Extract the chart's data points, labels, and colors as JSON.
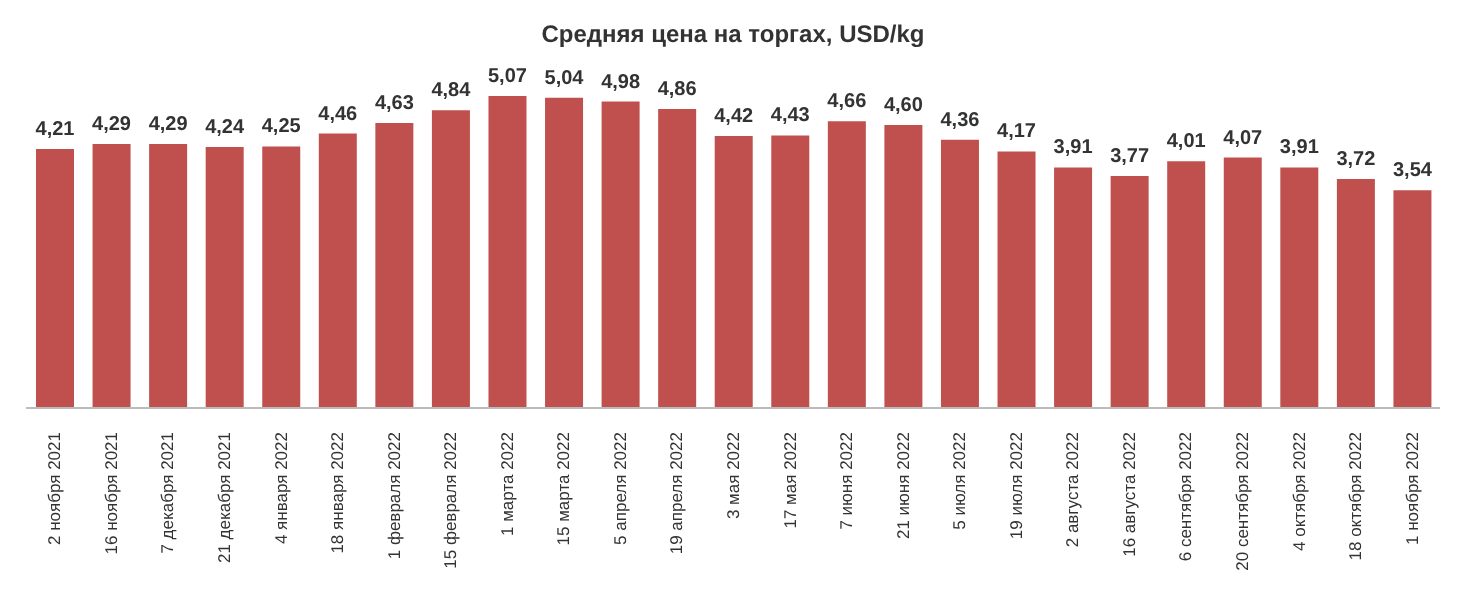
{
  "chart_data": {
    "type": "bar",
    "title": "Средняя цена на торгах, USD/kg",
    "categories": [
      "2 ноября 2021",
      "16 ноября 2021",
      "7 декабря 2021",
      "21 декабря 2021",
      "4 января 2022",
      "18 января 2022",
      "1 февраля 2022",
      "15 февраля 2022",
      "1 марта 2022",
      "15 марта 2022",
      "5 апреля 2022",
      "19 апреля 2022",
      "3 мая 2022",
      "17 мая 2022",
      "7 июня 2022",
      "21 июня 2022",
      "5 июля 2022",
      "19 июля 2022",
      "2 августа 2022",
      "16 августа 2022",
      "6 сентября 2022",
      "20 сентября 2022",
      "4 октября 2022",
      "18 октября 2022",
      "1 ноября 2022"
    ],
    "values": [
      4.21,
      4.29,
      4.29,
      4.24,
      4.25,
      4.46,
      4.63,
      4.84,
      5.07,
      5.04,
      4.98,
      4.86,
      4.42,
      4.43,
      4.66,
      4.6,
      4.36,
      4.17,
      3.91,
      3.77,
      4.01,
      4.07,
      3.91,
      3.72,
      3.54
    ],
    "value_labels": [
      "4,21",
      "4,29",
      "4,29",
      "4,24",
      "4,25",
      "4,46",
      "4,63",
      "4,84",
      "5,07",
      "5,04",
      "4,98",
      "4,86",
      "4,42",
      "4,43",
      "4,66",
      "4,60",
      "4,36",
      "4,17",
      "3,91",
      "3,77",
      "4,01",
      "4,07",
      "3,91",
      "3,72",
      "3,54"
    ],
    "color": "#c0504d",
    "grid": false,
    "legend": false
  }
}
